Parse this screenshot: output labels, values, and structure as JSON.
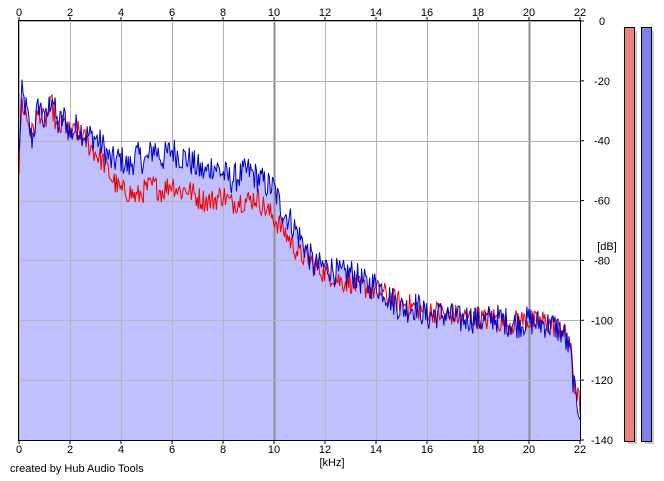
{
  "chart_data": {
    "type": "area",
    "xlabel": "[kHz]",
    "ylabel": "[dB]",
    "xlim": [
      0,
      22
    ],
    "ylim": [
      -140,
      0
    ],
    "xticks": [
      0,
      2,
      4,
      6,
      8,
      10,
      12,
      14,
      16,
      18,
      20,
      22
    ],
    "yticks": [
      0,
      -20,
      -40,
      -60,
      -80,
      -100,
      -120,
      -140
    ],
    "grid": true,
    "series": [
      {
        "color": "#0000cc",
        "fill": "#c0c0ff",
        "x": [
          0,
          0.1,
          0.3,
          0.5,
          0.8,
          1.0,
          1.3,
          1.5,
          1.8,
          2.0,
          2.3,
          2.6,
          3.0,
          3.3,
          3.6,
          4.0,
          4.3,
          4.6,
          5.0,
          5.3,
          5.6,
          6.0,
          6.3,
          6.6,
          7.0,
          7.3,
          7.6,
          8.0,
          8.3,
          8.6,
          9.0,
          9.3,
          9.6,
          10.0,
          10.3,
          10.6,
          11.0,
          11.3,
          11.6,
          12.0,
          12.3,
          12.6,
          13.0,
          13.3,
          13.6,
          14.0,
          14.3,
          14.6,
          15.0,
          15.3,
          15.6,
          16.0,
          16.3,
          16.6,
          17.0,
          17.3,
          17.6,
          18.0,
          18.3,
          18.6,
          19.0,
          19.3,
          19.6,
          20.0,
          20.3,
          20.6,
          21.0,
          21.3,
          21.6,
          21.8,
          22.0
        ],
        "y": [
          -45,
          -24,
          -30,
          -40,
          -27,
          -35,
          -24,
          -35,
          -32,
          -38,
          -35,
          -38,
          -39,
          -42,
          -47,
          -46,
          -49,
          -45,
          -47,
          -42,
          -46,
          -43,
          -45,
          -46,
          -49,
          -51,
          -48,
          -51,
          -53,
          -52,
          -50,
          -52,
          -54,
          -56,
          -63,
          -66,
          -72,
          -77,
          -82,
          -82,
          -83,
          -85,
          -84,
          -86,
          -88,
          -88,
          -90,
          -93,
          -96,
          -96,
          -95,
          -99,
          -98,
          -98,
          -99,
          -100,
          -99,
          -100,
          -100,
          -99,
          -100,
          -101,
          -101,
          -100,
          -101,
          -101,
          -102,
          -104,
          -110,
          -125,
          -130
        ]
      },
      {
        "color": "#ee0000",
        "x": [
          0,
          0.1,
          0.3,
          0.5,
          0.8,
          1.0,
          1.3,
          1.5,
          1.8,
          2.0,
          2.3,
          2.6,
          3.0,
          3.3,
          3.6,
          4.0,
          4.3,
          4.6,
          5.0,
          5.3,
          5.6,
          6.0,
          6.3,
          6.6,
          7.0,
          7.3,
          7.6,
          8.0,
          8.3,
          8.6,
          9.0,
          9.3,
          9.6,
          10.0,
          10.3,
          10.6,
          11.0,
          11.3,
          11.6,
          12.0,
          12.3,
          12.6,
          13.0,
          13.3,
          13.6,
          14.0,
          14.3,
          14.6,
          15.0,
          15.3,
          15.6,
          16.0,
          16.3,
          16.6,
          17.0,
          17.3,
          17.6,
          18.0,
          18.3,
          18.6,
          19.0,
          19.3,
          19.6,
          20.0,
          20.3,
          20.6,
          21.0,
          21.3,
          21.6,
          21.8,
          22.0
        ],
        "y": [
          -50,
          -27,
          -32,
          -38,
          -30,
          -34,
          -28,
          -37,
          -34,
          -38,
          -37,
          -40,
          -44,
          -47,
          -52,
          -57,
          -57,
          -59,
          -56,
          -55,
          -57,
          -54,
          -57,
          -56,
          -59,
          -60,
          -60,
          -58,
          -61,
          -60,
          -60,
          -59,
          -62,
          -66,
          -69,
          -73,
          -78,
          -79,
          -82,
          -84,
          -85,
          -87,
          -87,
          -89,
          -89,
          -90,
          -91,
          -93,
          -94,
          -95,
          -96,
          -97,
          -97,
          -98,
          -98,
          -99,
          -99,
          -99,
          -100,
          -99,
          -101,
          -101,
          -100,
          -100,
          -101,
          -100,
          -102,
          -103,
          -108,
          -122,
          -128
        ]
      }
    ]
  },
  "meters": {
    "left_color": "#f08080",
    "right_color": "#8080f0"
  },
  "footer": {
    "credit": "created by Hub Audio Tools"
  }
}
